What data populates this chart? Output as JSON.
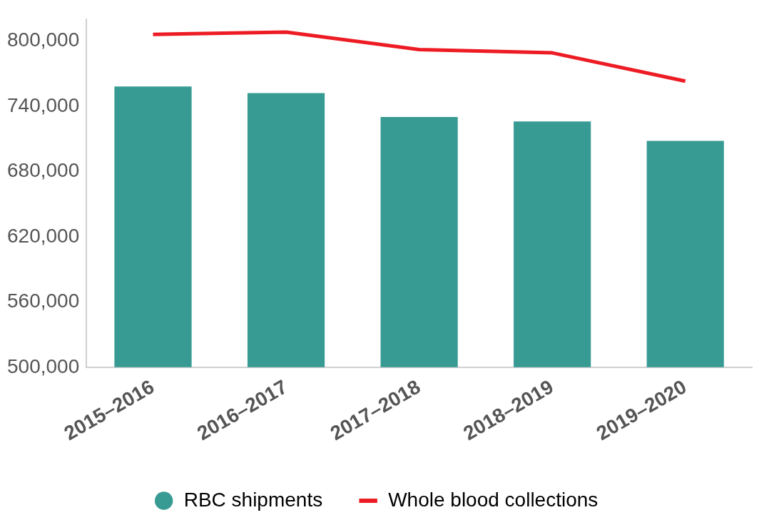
{
  "chart_data": {
    "type": "bar",
    "categories": [
      "2015–2016",
      "2016–2017",
      "2017–2018",
      "2018–2019",
      "2019–2020"
    ],
    "series": [
      {
        "name": "RBC shipments",
        "color": "#379b94",
        "values": [
          758000,
          752000,
          730000,
          726000,
          708000
        ]
      },
      {
        "name": "Whole blood collections",
        "type": "line",
        "color": "#ed1c24",
        "values": [
          806000,
          808000,
          792000,
          789000,
          763000
        ]
      }
    ],
    "ylim": [
      500000,
      820000
    ],
    "yticks": [
      {
        "value": 500000,
        "label": "500,000"
      },
      {
        "value": 560000,
        "label": "560,000"
      },
      {
        "value": 620000,
        "label": "620,000"
      },
      {
        "value": 680000,
        "label": "680,000"
      },
      {
        "value": 740000,
        "label": "740,000"
      },
      {
        "value": 800000,
        "label": "800,000"
      }
    ],
    "grid": false,
    "legend": "bottom",
    "marker": "none",
    "line_style": "solid"
  }
}
